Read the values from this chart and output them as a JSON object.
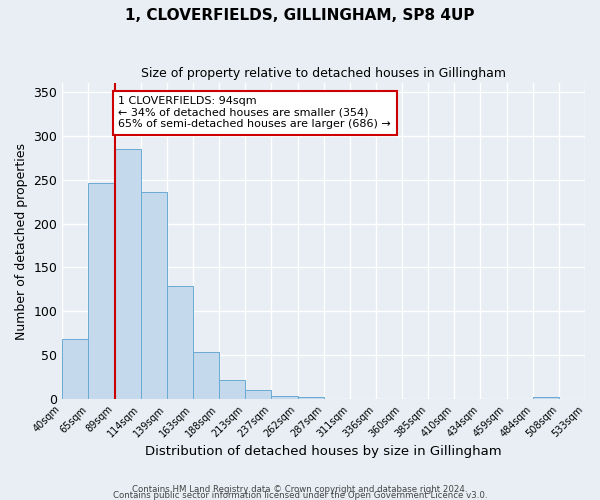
{
  "title": "1, CLOVERFIELDS, GILLINGHAM, SP8 4UP",
  "subtitle": "Size of property relative to detached houses in Gillingham",
  "xlabel": "Distribution of detached houses by size in Gillingham",
  "ylabel": "Number of detached properties",
  "bar_values": [
    69,
    246,
    285,
    236,
    129,
    54,
    22,
    11,
    4,
    3,
    0,
    0,
    0,
    0,
    0,
    0,
    0,
    0,
    2,
    0
  ],
  "x_labels": [
    "40sqm",
    "65sqm",
    "89sqm",
    "114sqm",
    "139sqm",
    "163sqm",
    "188sqm",
    "213sqm",
    "237sqm",
    "262sqm",
    "287sqm",
    "311sqm",
    "336sqm",
    "360sqm",
    "385sqm",
    "410sqm",
    "434sqm",
    "459sqm",
    "484sqm",
    "508sqm",
    "533sqm"
  ],
  "bar_color": "#c5d9ed",
  "bar_edge_color": "#6aaad4",
  "background_color": "#e8eef4",
  "grid_color": "#ffffff",
  "vline_color": "#cc0000",
  "annotation_title": "1 CLOVERFIELDS: 94sqm",
  "annotation_line1": "← 34% of detached houses are smaller (354)",
  "annotation_line2": "65% of semi-detached houses are larger (686) →",
  "annotation_box_color": "#ffffff",
  "annotation_box_edge": "#cc0000",
  "ylim": [
    0,
    360
  ],
  "yticks": [
    0,
    50,
    100,
    150,
    200,
    250,
    300,
    350
  ],
  "footer1": "Contains HM Land Registry data © Crown copyright and database right 2024.",
  "footer2": "Contains public sector information licensed under the Open Government Licence v3.0."
}
